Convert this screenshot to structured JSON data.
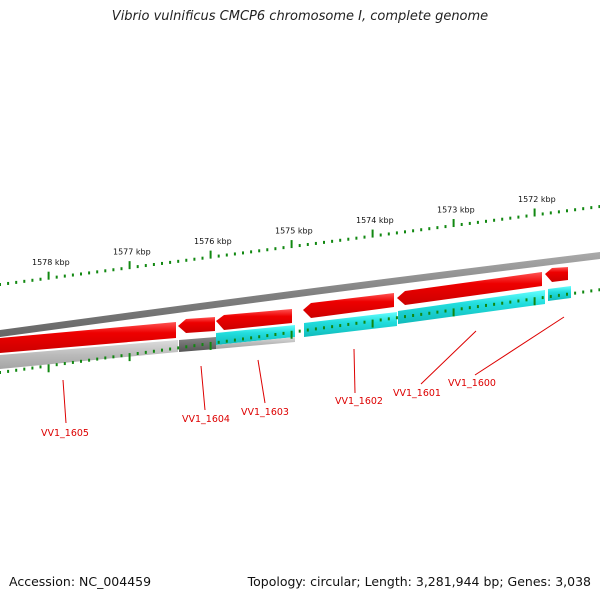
{
  "title": "Vibrio vulnificus CMCP6 chromosome I, complete genome",
  "accession_text": "Accession: NC_004459",
  "summary_text": "Topology: circular; Length: 3,281,944 bp; Genes: 3,038",
  "kbp_ticks": [
    {
      "label": "1578 kbp",
      "kbp": 1578
    },
    {
      "label": "1577 kbp",
      "kbp": 1577
    },
    {
      "label": "1576 kbp",
      "kbp": 1576
    },
    {
      "label": "1575 kbp",
      "kbp": 1575
    },
    {
      "label": "1574 kbp",
      "kbp": 1574
    },
    {
      "label": "1573 kbp",
      "kbp": 1573
    },
    {
      "label": "1572 kbp",
      "kbp": 1572
    }
  ],
  "genes": [
    {
      "label": "VV1_1605",
      "status": "gray"
    },
    {
      "label": "VV1_1604",
      "status": "dark-gray"
    },
    {
      "label": "VV1_1603",
      "status": "cyan"
    },
    {
      "label": "VV1_1602",
      "status": "cyan"
    },
    {
      "label": "VV1_1601",
      "status": "cyan"
    },
    {
      "label": "VV1_1600",
      "status": "cyan"
    }
  ],
  "colors": {
    "gene_cds": "#ee0000",
    "match_present": "#22dddd",
    "match_absent": "#b4b4b4",
    "match_partial": "#666666",
    "backbone": "#888888",
    "tick": "#118811",
    "label": "#dd0000"
  }
}
